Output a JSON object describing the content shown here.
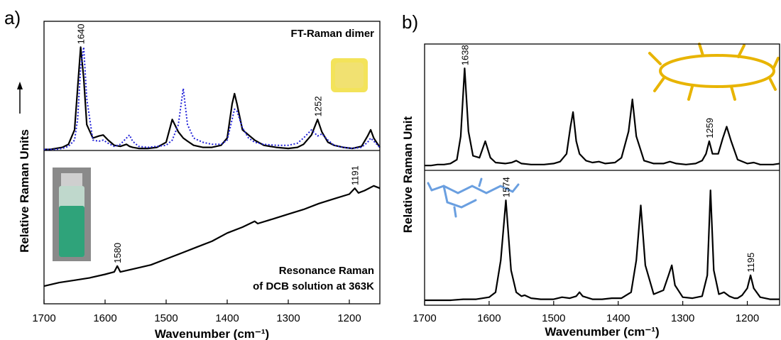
{
  "chart_data": [
    {
      "type": "line",
      "panel_label": "a)",
      "xlabel": "Wavenumber (cm⁻¹)",
      "ylabel": "Relative Raman Units",
      "xlim": [
        1700,
        1150
      ],
      "xticks": [
        1700,
        1600,
        1500,
        1400,
        1300,
        1200
      ],
      "subplots": [
        {
          "ylim": [
            0,
            125
          ],
          "annotation": [
            "FT-Raman dimer"
          ],
          "peak_labels": [
            1640,
            1252
          ],
          "x": [
            1700,
            1690,
            1680,
            1670,
            1660,
            1650,
            1645,
            1640,
            1635,
            1630,
            1620,
            1610,
            1603,
            1595,
            1585,
            1575,
            1565,
            1560,
            1555,
            1545,
            1530,
            1515,
            1500,
            1490,
            1480,
            1472,
            1465,
            1455,
            1440,
            1425,
            1410,
            1400,
            1392,
            1388,
            1384,
            1375,
            1365,
            1355,
            1340,
            1320,
            1300,
            1285,
            1275,
            1262,
            1252,
            1245,
            1235,
            1225,
            1210,
            1195,
            1180,
            1170,
            1165,
            1160,
            1150
          ],
          "series": [
            {
              "color": "#000000",
              "style": "solid",
              "values": [
                1,
                1,
                2,
                3,
                6,
                20,
                60,
                100,
                70,
                25,
                12,
                14,
                15,
                10,
                5,
                4,
                6,
                4,
                3,
                2,
                2,
                3,
                8,
                30,
                18,
                12,
                9,
                5,
                3,
                3,
                5,
                12,
                45,
                55,
                45,
                20,
                15,
                10,
                5,
                3,
                2,
                3,
                6,
                15,
                30,
                18,
                8,
                5,
                3,
                2,
                4,
                14,
                20,
                12,
                3
              ]
            },
            {
              "color": "#2020d8",
              "style": "dotted",
              "values": [
                1,
                1,
                1,
                2,
                4,
                10,
                30,
                80,
                100,
                50,
                10,
                9,
                10,
                7,
                4,
                6,
                12,
                15,
                9,
                4,
                3,
                4,
                5,
                10,
                25,
                60,
                25,
                12,
                8,
                6,
                6,
                10,
                30,
                40,
                38,
                22,
                12,
                8,
                6,
                5,
                5,
                7,
                12,
                20,
                14,
                16,
                10,
                5,
                3,
                2,
                3,
                8,
                12,
                9,
                3
              ]
            }
          ]
        },
        {
          "ylim": [
            -10,
            120
          ],
          "annotation": [
            "Resonance Raman",
            "of DCB solution at 363K"
          ],
          "peak_labels": [
            1580,
            1191
          ],
          "x": [
            1700,
            1675,
            1650,
            1625,
            1600,
            1585,
            1580,
            1575,
            1550,
            1525,
            1500,
            1475,
            1450,
            1425,
            1400,
            1375,
            1355,
            1350,
            1325,
            1300,
            1275,
            1250,
            1225,
            1200,
            1191,
            1185,
            1175,
            1160,
            1150
          ],
          "series": [
            {
              "color": "#000000",
              "style": "solid",
              "values": [
                5,
                8,
                10,
                12,
                15,
                17,
                22,
                17,
                20,
                23,
                28,
                33,
                38,
                43,
                50,
                55,
                60,
                58,
                62,
                66,
                70,
                75,
                79,
                83,
                88,
                84,
                86,
                90,
                88
              ]
            }
          ]
        }
      ]
    },
    {
      "type": "line",
      "panel_label": "b)",
      "xlabel": "Wavenumber (cm⁻¹)",
      "ylabel": "Relative Raman Unit",
      "xlim": [
        1700,
        1150
      ],
      "xticks": [
        1700,
        1600,
        1500,
        1400,
        1300,
        1200
      ],
      "subplots": [
        {
          "ylim": [
            -5,
            125
          ],
          "annotation": [],
          "peak_labels": [
            1638,
            1259
          ],
          "x": [
            1700,
            1690,
            1680,
            1670,
            1660,
            1650,
            1644,
            1638,
            1632,
            1625,
            1615,
            1606,
            1598,
            1590,
            1575,
            1565,
            1558,
            1550,
            1535,
            1515,
            1500,
            1490,
            1480,
            1474,
            1470,
            1465,
            1460,
            1450,
            1440,
            1430,
            1420,
            1405,
            1395,
            1384,
            1378,
            1372,
            1360,
            1345,
            1330,
            1320,
            1310,
            1295,
            1280,
            1270,
            1264,
            1259,
            1254,
            1245,
            1238,
            1232,
            1225,
            1215,
            1200,
            1190,
            1180,
            1160,
            1150
          ],
          "series": [
            {
              "color": "#000000",
              "style": "solid",
              "values": [
                0,
                0,
                1,
                1,
                2,
                6,
                30,
                100,
                35,
                10,
                8,
                25,
                8,
                3,
                2,
                3,
                5,
                2,
                1,
                1,
                2,
                4,
                12,
                40,
                55,
                25,
                12,
                5,
                3,
                4,
                2,
                3,
                8,
                35,
                68,
                30,
                5,
                2,
                2,
                4,
                2,
                1,
                2,
                5,
                12,
                25,
                12,
                12,
                28,
                40,
                25,
                6,
                2,
                3,
                1,
                1,
                2
              ]
            }
          ]
        },
        {
          "ylim": [
            -5,
            130
          ],
          "annotation": [],
          "peak_labels": [
            1574,
            1195
          ],
          "x": [
            1700,
            1680,
            1660,
            1640,
            1620,
            1600,
            1590,
            1582,
            1574,
            1566,
            1558,
            1550,
            1545,
            1535,
            1520,
            1500,
            1487,
            1475,
            1465,
            1460,
            1455,
            1440,
            1425,
            1410,
            1395,
            1380,
            1372,
            1365,
            1358,
            1345,
            1330,
            1322,
            1317,
            1312,
            1300,
            1285,
            1270,
            1262,
            1257,
            1252,
            1244,
            1236,
            1228,
            1220,
            1215,
            1208,
            1200,
            1195,
            1190,
            1180,
            1165,
            1150
          ],
          "series": [
            {
              "color": "#000000",
              "style": "solid",
              "values": [
                0,
                0,
                0,
                1,
                1,
                3,
                8,
                40,
                100,
                30,
                8,
                4,
                5,
                2,
                1,
                1,
                3,
                2,
                4,
                8,
                4,
                1,
                1,
                2,
                2,
                8,
                40,
                95,
                35,
                6,
                10,
                25,
                35,
                15,
                3,
                2,
                4,
                25,
                110,
                30,
                6,
                8,
                4,
                2,
                2,
                5,
                12,
                25,
                12,
                3,
                1,
                1
              ]
            }
          ]
        }
      ]
    }
  ]
}
